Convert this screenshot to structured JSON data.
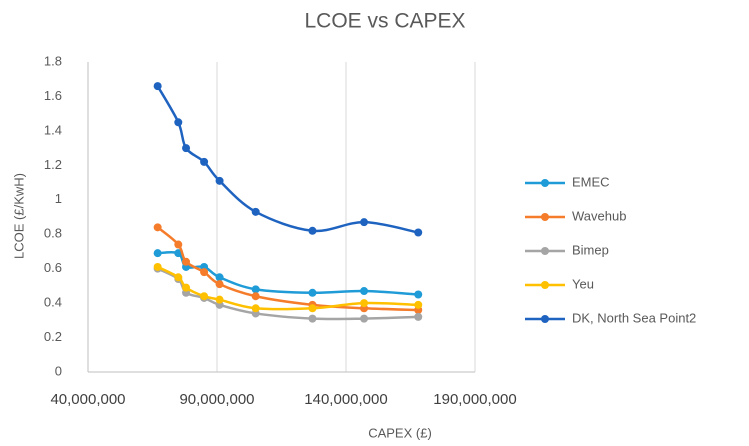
{
  "chart_data": {
    "type": "scatter",
    "title": "LCOE vs CAPEX",
    "x_label": "CAPEX (£)",
    "y_label": "LCOE (£/KwH)",
    "x": [
      67000000,
      75000000,
      78000000,
      85000000,
      91000000,
      105000000,
      127000000,
      147000000,
      168000000
    ],
    "series": [
      {
        "name": "EMEC",
        "color": "#1f9bd7",
        "values": [
          0.69,
          0.69,
          0.61,
          0.61,
          0.55,
          0.48,
          0.46,
          0.47,
          0.45
        ]
      },
      {
        "name": "Wavehub",
        "color": "#f57c2b",
        "values": [
          0.84,
          0.74,
          0.64,
          0.58,
          0.51,
          0.44,
          0.39,
          0.37,
          0.36
        ]
      },
      {
        "name": "Bimep",
        "color": "#a5a5a5",
        "values": [
          0.6,
          0.54,
          0.46,
          0.43,
          0.39,
          0.34,
          0.31,
          0.31,
          0.32
        ]
      },
      {
        "name": "Yeu",
        "color": "#ffc000",
        "values": [
          0.61,
          0.55,
          0.49,
          0.44,
          0.42,
          0.37,
          0.37,
          0.4,
          0.39
        ]
      },
      {
        "name": "DK, North Sea Point2",
        "color": "#1f63c0",
        "values": [
          1.66,
          1.45,
          1.3,
          1.22,
          1.11,
          0.93,
          0.82,
          0.87,
          0.81
        ]
      }
    ],
    "xlim": [
      40000000,
      190000000
    ],
    "xticks": [
      {
        "value": 40000000,
        "label": "40,000,000"
      },
      {
        "value": 90000000,
        "label": "90,000,000"
      },
      {
        "value": 140000000,
        "label": "140,000,000"
      },
      {
        "value": 190000000,
        "label": "190,000,000"
      }
    ],
    "ylim": [
      0,
      1.8
    ],
    "yticks": [
      0,
      0.2,
      0.4,
      0.6,
      0.8,
      1,
      1.2,
      1.4,
      1.6,
      1.8
    ],
    "grid": "x",
    "smooth": true,
    "legend": "right"
  }
}
